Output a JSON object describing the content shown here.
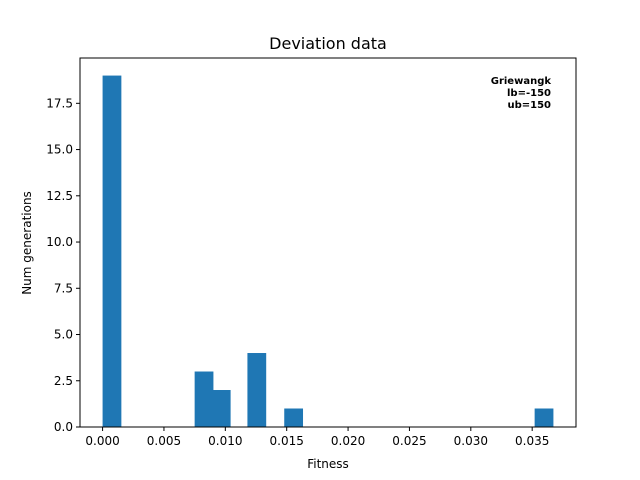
{
  "chart_data": {
    "type": "bar",
    "title": "Deviation data",
    "xlabel": "Fitness",
    "ylabel": "Num generations",
    "bin_width": 0.00153,
    "bins": [
      {
        "x0": 0.0,
        "count": 19
      },
      {
        "x0": 0.0075,
        "count": 3
      },
      {
        "x0": 0.0089,
        "count": 2
      },
      {
        "x0": 0.0118,
        "count": 4
      },
      {
        "x0": 0.0148,
        "count": 1
      },
      {
        "x0": 0.0352,
        "count": 1
      }
    ],
    "xlim": [
      -0.00184,
      0.03857
    ],
    "ylim": [
      0,
      19.95
    ],
    "xticks": [
      {
        "value": 0.0,
        "label": "0.000"
      },
      {
        "value": 0.005,
        "label": "0.005"
      },
      {
        "value": 0.01,
        "label": "0.010"
      },
      {
        "value": 0.015,
        "label": "0.015"
      },
      {
        "value": 0.02,
        "label": "0.020"
      },
      {
        "value": 0.025,
        "label": "0.025"
      },
      {
        "value": 0.03,
        "label": "0.030"
      },
      {
        "value": 0.035,
        "label": "0.035"
      }
    ],
    "yticks": [
      {
        "value": 0.0,
        "label": "0.0"
      },
      {
        "value": 2.5,
        "label": "2.5"
      },
      {
        "value": 5.0,
        "label": "5.0"
      },
      {
        "value": 7.5,
        "label": "7.5"
      },
      {
        "value": 10.0,
        "label": "10.0"
      },
      {
        "value": 12.5,
        "label": "12.5"
      },
      {
        "value": 15.0,
        "label": "15.0"
      },
      {
        "value": 17.5,
        "label": "17.5"
      }
    ],
    "annotation": [
      "Griewangk",
      "lb=-150",
      "ub=150"
    ],
    "bar_color": "#1f77b4",
    "grid": false,
    "legend": "none"
  }
}
